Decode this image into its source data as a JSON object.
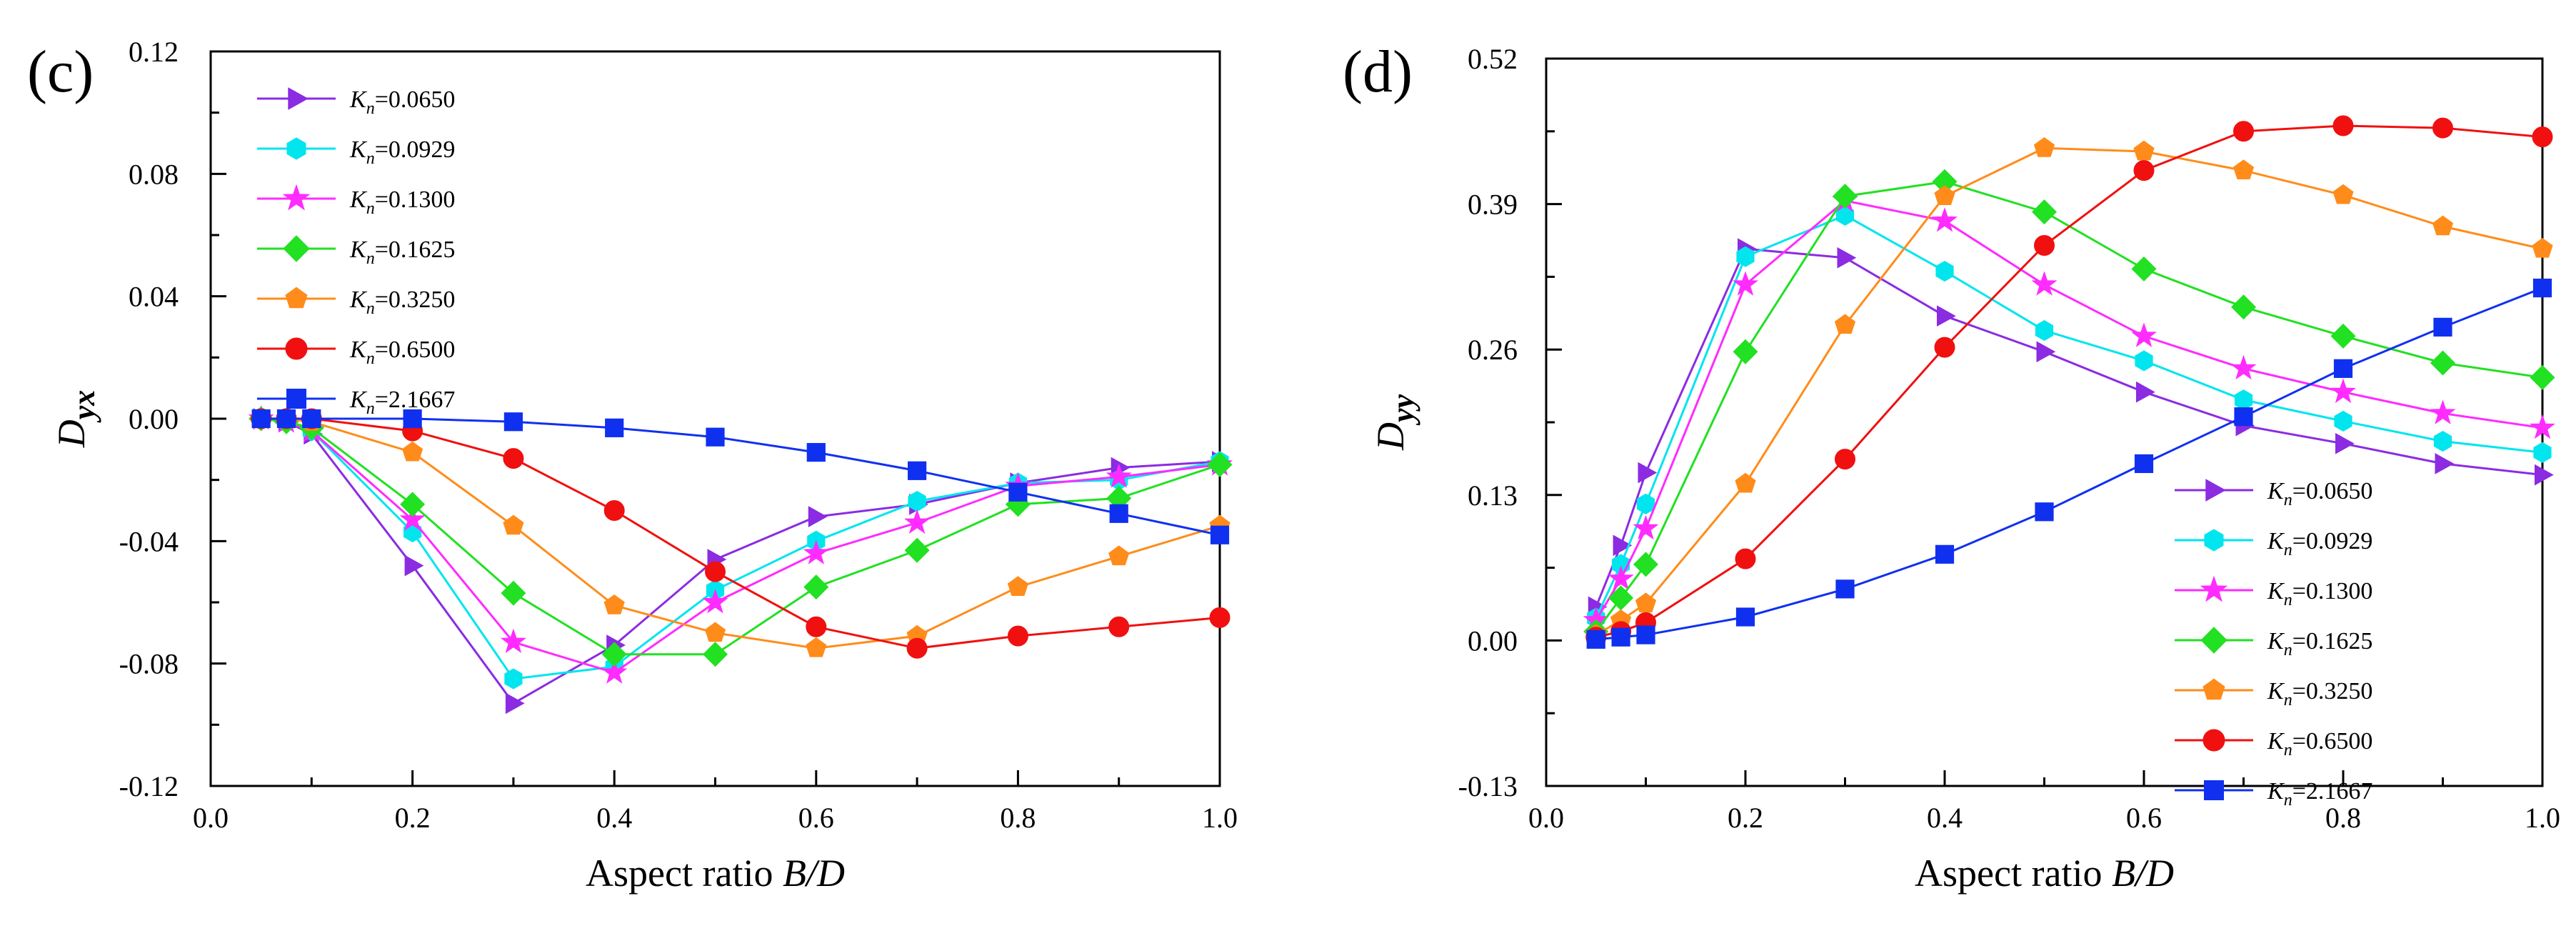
{
  "chart_data": [
    {
      "type": "line",
      "panel_label": "(c)",
      "xlabel": "Aspect ratio B/D",
      "xlabel_main": "Aspect ratio ",
      "xlabel_italic": "B/D",
      "ylabel": "Dyx",
      "ylabel_main": "D",
      "ylabel_sub": "yx",
      "xlim": [
        0.0,
        1.0
      ],
      "ylim": [
        -0.12,
        0.12
      ],
      "xticks": [
        "0.0",
        "0.2",
        "0.4",
        "0.6",
        "0.8",
        "1.0"
      ],
      "xtick_values": [
        0.0,
        0.2,
        0.4,
        0.6,
        0.8,
        1.0
      ],
      "yticks": [
        "-0.12",
        "-0.08",
        "-0.04",
        "0.00",
        "0.04",
        "0.08",
        "0.12"
      ],
      "ytick_values": [
        -0.12,
        -0.08,
        -0.04,
        0.0,
        0.04,
        0.08,
        0.12
      ],
      "legend_position": "top-left",
      "x": [
        0.05,
        0.075,
        0.1,
        0.2,
        0.3,
        0.4,
        0.5,
        0.6,
        0.7,
        0.8,
        0.9,
        1.0
      ],
      "series": [
        {
          "name": "Kn=0.0650",
          "label_value": "=0.0650",
          "color": "#8B2BE2",
          "marker": "triangle-right",
          "values": [
            0.0,
            -0.001,
            -0.005,
            -0.048,
            -0.093,
            -0.074,
            -0.046,
            -0.032,
            -0.028,
            -0.021,
            -0.016,
            -0.014
          ]
        },
        {
          "name": "Kn=0.0929",
          "label_value": "=0.0929",
          "color": "#00E5EE",
          "marker": "hexagon",
          "values": [
            0.0,
            -0.001,
            -0.004,
            -0.037,
            -0.085,
            -0.081,
            -0.056,
            -0.04,
            -0.027,
            -0.021,
            -0.02,
            -0.014
          ]
        },
        {
          "name": "Kn=0.1300",
          "label_value": "=0.1300",
          "color": "#FF2BFF",
          "marker": "star",
          "values": [
            0.0,
            -0.001,
            -0.004,
            -0.033,
            -0.073,
            -0.083,
            -0.06,
            -0.044,
            -0.034,
            -0.022,
            -0.019,
            -0.015
          ]
        },
        {
          "name": "Kn=0.1625",
          "label_value": "=0.1625",
          "color": "#22E022",
          "marker": "diamond",
          "values": [
            0.0,
            -0.001,
            -0.003,
            -0.028,
            -0.057,
            -0.077,
            -0.077,
            -0.055,
            -0.043,
            -0.028,
            -0.026,
            -0.015
          ]
        },
        {
          "name": "Kn=0.3250",
          "label_value": "=0.3250",
          "color": "#FF8C1A",
          "marker": "pentagon",
          "values": [
            0.0,
            0.0,
            -0.001,
            -0.011,
            -0.035,
            -0.061,
            -0.07,
            -0.075,
            -0.071,
            -0.055,
            -0.045,
            -0.035
          ]
        },
        {
          "name": "Kn=0.6500",
          "label_value": "=0.6500",
          "color": "#F01010",
          "marker": "circle",
          "values": [
            0.0,
            0.0,
            0.0,
            -0.004,
            -0.013,
            -0.03,
            -0.05,
            -0.068,
            -0.075,
            -0.071,
            -0.068,
            -0.065
          ]
        },
        {
          "name": "Kn=2.1667",
          "label_value": "=2.1667",
          "color": "#1030F0",
          "marker": "square",
          "values": [
            0.0,
            0.0,
            0.0,
            0.0,
            -0.001,
            -0.003,
            -0.006,
            -0.011,
            -0.017,
            -0.024,
            -0.031,
            -0.038
          ]
        }
      ]
    },
    {
      "type": "line",
      "panel_label": "(d)",
      "xlabel": "Aspect ratio B/D",
      "xlabel_main": "Aspect ratio ",
      "xlabel_italic": "B/D",
      "ylabel": "Dyy",
      "ylabel_main": "D",
      "ylabel_sub": "yy",
      "xlim": [
        0.0,
        1.0
      ],
      "ylim": [
        -0.13,
        0.52
      ],
      "xticks": [
        "0.0",
        "0.2",
        "0.4",
        "0.6",
        "0.8",
        "1.0"
      ],
      "xtick_values": [
        0.0,
        0.2,
        0.4,
        0.6,
        0.8,
        1.0
      ],
      "yticks": [
        "-0.13",
        "0.00",
        "0.13",
        "0.26",
        "0.39",
        "0.52"
      ],
      "ytick_values": [
        -0.13,
        0.0,
        0.13,
        0.26,
        0.39,
        0.52
      ],
      "legend_position": "bottom-right",
      "x": [
        0.05,
        0.075,
        0.1,
        0.2,
        0.3,
        0.4,
        0.5,
        0.6,
        0.7,
        0.8,
        0.9,
        1.0
      ],
      "series": [
        {
          "name": "Kn=0.0650",
          "label_value": "=0.0650",
          "color": "#8B2BE2",
          "marker": "triangle-right",
          "values": [
            0.03,
            0.085,
            0.15,
            0.35,
            0.342,
            0.29,
            0.258,
            0.222,
            0.192,
            0.176,
            0.158,
            0.148
          ]
        },
        {
          "name": "Kn=0.0929",
          "label_value": "=0.0929",
          "color": "#00E5EE",
          "marker": "hexagon",
          "values": [
            0.02,
            0.068,
            0.122,
            0.343,
            0.38,
            0.33,
            0.277,
            0.25,
            0.215,
            0.196,
            0.178,
            0.168
          ]
        },
        {
          "name": "Kn=0.1300",
          "label_value": "=0.1300",
          "color": "#FF2BFF",
          "marker": "star",
          "values": [
            0.018,
            0.055,
            0.1,
            0.318,
            0.393,
            0.375,
            0.318,
            0.272,
            0.243,
            0.222,
            0.203,
            0.19
          ]
        },
        {
          "name": "Kn=0.1625",
          "label_value": "=0.1625",
          "color": "#22E022",
          "marker": "diamond",
          "values": [
            0.008,
            0.038,
            0.068,
            0.258,
            0.397,
            0.41,
            0.383,
            0.332,
            0.298,
            0.272,
            0.248,
            0.235
          ]
        },
        {
          "name": "Kn=0.3250",
          "label_value": "=0.3250",
          "color": "#FF8C1A",
          "marker": "pentagon",
          "values": [
            0.005,
            0.018,
            0.033,
            0.14,
            0.282,
            0.397,
            0.44,
            0.437,
            0.42,
            0.398,
            0.37,
            0.35
          ]
        },
        {
          "name": "Kn=0.6500",
          "label_value": "=0.6500",
          "color": "#F01010",
          "marker": "circle",
          "values": [
            0.003,
            0.008,
            0.016,
            0.073,
            0.162,
            0.262,
            0.353,
            0.42,
            0.455,
            0.46,
            0.458,
            0.45
          ]
        },
        {
          "name": "Kn=2.1667",
          "label_value": "=2.1667",
          "color": "#1030F0",
          "marker": "square",
          "values": [
            0.001,
            0.003,
            0.005,
            0.021,
            0.046,
            0.077,
            0.115,
            0.158,
            0.2,
            0.243,
            0.28,
            0.315
          ]
        }
      ]
    }
  ]
}
